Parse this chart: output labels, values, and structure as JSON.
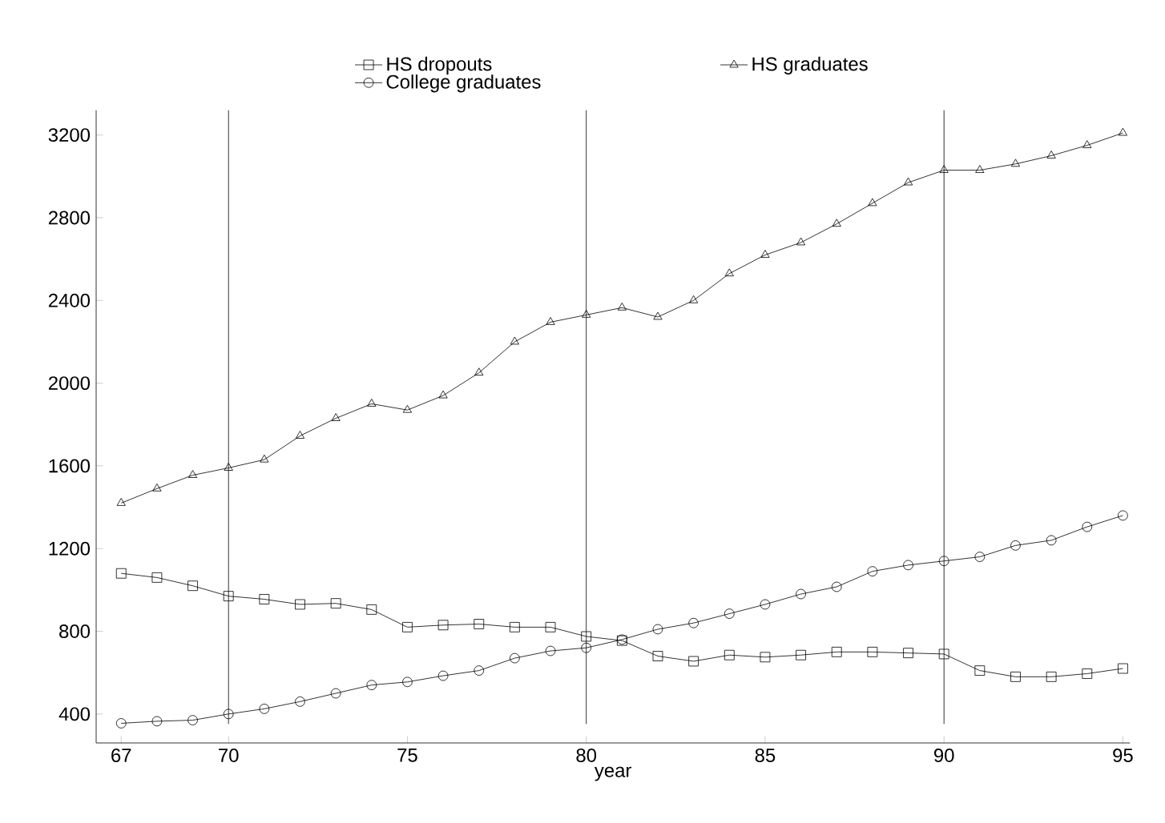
{
  "chart_data": {
    "type": "line",
    "xlabel": "year",
    "x": [
      67,
      68,
      69,
      70,
      71,
      72,
      73,
      74,
      75,
      76,
      77,
      78,
      79,
      80,
      81,
      82,
      83,
      84,
      85,
      86,
      87,
      88,
      89,
      90,
      91,
      92,
      93,
      94,
      95
    ],
    "series": [
      {
        "name": "HS dropouts",
        "color": "#000000",
        "marker": "square",
        "values": [
          1080,
          1060,
          1020,
          970,
          955,
          930,
          935,
          905,
          820,
          830,
          835,
          820,
          820,
          775,
          755,
          680,
          655,
          685,
          675,
          685,
          700,
          700,
          695,
          690,
          610,
          580,
          580,
          595,
          620
        ]
      },
      {
        "name": "HS graduates",
        "color": "#000000",
        "marker": "triangle",
        "values": [
          1420,
          1490,
          1555,
          1590,
          1630,
          1745,
          1830,
          1900,
          1870,
          1940,
          2050,
          2200,
          2295,
          2330,
          2365,
          2320,
          2400,
          2530,
          2620,
          2680,
          2770,
          2870,
          2970,
          3030,
          3030,
          3060,
          3100,
          3150,
          3210
        ]
      },
      {
        "name": "College graduates",
        "color": "#000000",
        "marker": "circle",
        "values": [
          355,
          365,
          370,
          400,
          425,
          460,
          500,
          540,
          555,
          585,
          610,
          670,
          705,
          720,
          760,
          810,
          840,
          885,
          930,
          980,
          1015,
          1090,
          1120,
          1140,
          1160,
          1215,
          1240,
          1305,
          1360
        ]
      }
    ],
    "xlim": [
      66.3,
      95.2
    ],
    "ylim": [
      260,
      3320
    ],
    "xticks": [
      67,
      70,
      75,
      80,
      85,
      90,
      95
    ],
    "yticks": [
      400,
      800,
      1200,
      1600,
      2000,
      2400,
      2800,
      3200
    ],
    "ref_lines": [
      {
        "axis": "x",
        "value": 70,
        "color": "#000000"
      },
      {
        "axis": "x",
        "value": 80,
        "color": "#000000"
      },
      {
        "axis": "x",
        "value": 90,
        "color": "#000000"
      }
    ],
    "grid": false,
    "legend": "top",
    "line_style": "solid"
  }
}
